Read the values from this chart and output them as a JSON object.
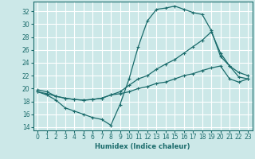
{
  "xlabel": "Humidex (Indice chaleur)",
  "bg_color": "#cce8e8",
  "grid_color": "#ffffff",
  "line_color": "#1a6b6b",
  "xlim": [
    -0.5,
    23.5
  ],
  "ylim": [
    13.5,
    33.5
  ],
  "yticks": [
    14,
    16,
    18,
    20,
    22,
    24,
    26,
    28,
    30,
    32
  ],
  "xticks": [
    0,
    1,
    2,
    3,
    4,
    5,
    6,
    7,
    8,
    9,
    10,
    11,
    12,
    13,
    14,
    15,
    16,
    17,
    18,
    19,
    20,
    21,
    22,
    23
  ],
  "series": [
    {
      "x": [
        0,
        1,
        2,
        3,
        4,
        5,
        6,
        7,
        8,
        9,
        10,
        11,
        12,
        13,
        14,
        15,
        16,
        17,
        18,
        19,
        20,
        21,
        22,
        23
      ],
      "y": [
        19.5,
        19.0,
        18.2,
        17.0,
        16.5,
        16.0,
        15.5,
        15.2,
        14.3,
        17.5,
        21.5,
        26.5,
        30.5,
        32.3,
        32.5,
        32.8,
        32.3,
        31.8,
        31.5,
        29.0,
        25.0,
        23.5,
        21.8,
        21.5
      ]
    },
    {
      "x": [
        0,
        1,
        2,
        3,
        4,
        5,
        6,
        7,
        8,
        9,
        10,
        11,
        12,
        13,
        14,
        15,
        16,
        17,
        18,
        19,
        20,
        21,
        22,
        23
      ],
      "y": [
        19.8,
        19.5,
        18.8,
        18.5,
        18.3,
        18.2,
        18.3,
        18.5,
        19.0,
        19.5,
        20.5,
        21.5,
        22.0,
        23.0,
        23.8,
        24.5,
        25.5,
        26.5,
        27.5,
        28.8,
        25.5,
        23.5,
        22.5,
        22.0
      ]
    },
    {
      "x": [
        0,
        1,
        2,
        3,
        4,
        5,
        6,
        7,
        8,
        9,
        10,
        11,
        12,
        13,
        14,
        15,
        16,
        17,
        18,
        19,
        20,
        21,
        22,
        23
      ],
      "y": [
        19.5,
        19.2,
        18.8,
        18.5,
        18.3,
        18.2,
        18.3,
        18.5,
        19.0,
        19.2,
        19.5,
        20.0,
        20.3,
        20.8,
        21.0,
        21.5,
        22.0,
        22.3,
        22.8,
        23.2,
        23.5,
        21.5,
        21.0,
        21.5
      ]
    }
  ]
}
